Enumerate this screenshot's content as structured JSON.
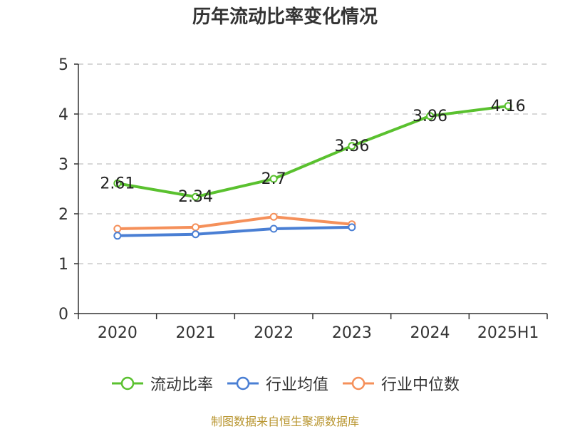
{
  "chart_data": {
    "type": "line",
    "title": "历年流动比率变化情况",
    "categories": [
      "2020",
      "2021",
      "2022",
      "2023",
      "2024",
      "2025H1"
    ],
    "ylim": [
      0,
      5
    ],
    "yticks": [
      0,
      1,
      2,
      3,
      4,
      5
    ],
    "grid": true,
    "legend_position": "bottom",
    "series": [
      {
        "name": "流动比率",
        "color": "#5ac12f",
        "values": [
          2.61,
          2.34,
          2.7,
          3.36,
          3.96,
          4.16
        ],
        "value_labels": [
          "2.61",
          "2.34",
          "2.7",
          "3.36",
          "3.96",
          "4.16"
        ]
      },
      {
        "name": "行业均值",
        "color": "#4a7fd4",
        "values": [
          1.56,
          1.59,
          1.7,
          1.73,
          null,
          null
        ]
      },
      {
        "name": "行业中位数",
        "color": "#f5905a",
        "values": [
          1.7,
          1.73,
          1.94,
          1.79,
          null,
          null
        ]
      }
    ]
  },
  "footer": {
    "source": "制图数据来自恒生聚源数据库"
  }
}
